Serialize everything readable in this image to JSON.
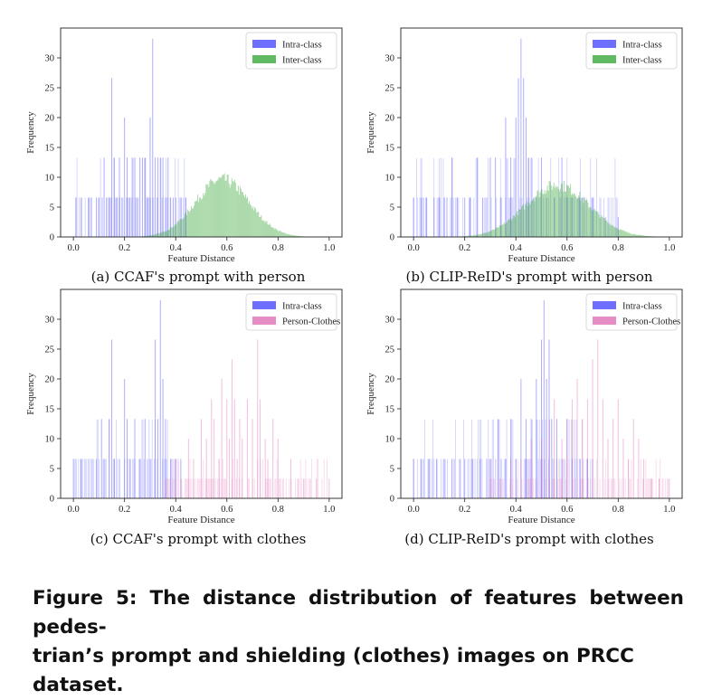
{
  "caption": {
    "lines": [
      "Figure 5: The distance distribution of features between pedes-",
      "trian’s prompt and shielding (clothes) images on PRCC",
      "dataset."
    ]
  },
  "colors": {
    "intra": "#4b4bff",
    "inter": "#3aa83a",
    "person_clothes": "#e070b8"
  },
  "chart_data": [
    {
      "type": "histogram",
      "subcaption": "(a) CCAF's prompt with person",
      "xlabel": "Feature Distance",
      "ylabel": "Frequency",
      "xlim": [
        -0.05,
        1.05
      ],
      "ylim": [
        0,
        35
      ],
      "xticks": [
        "0.0",
        "0.2",
        "0.4",
        "0.6",
        "0.8",
        "1.0"
      ],
      "yticks": [
        "0",
        "5",
        "10",
        "15",
        "20",
        "25",
        "30"
      ],
      "legend_position": "top-right",
      "series": [
        {
          "name": "Intra-class",
          "style": "spikes",
          "color_key": "intra",
          "x": [
            0.01,
            0.03,
            0.06,
            0.07,
            0.09,
            0.1,
            0.12,
            0.13,
            0.14,
            0.15,
            0.16,
            0.17,
            0.18,
            0.19,
            0.2,
            0.21,
            0.22,
            0.23,
            0.24,
            0.25,
            0.26,
            0.27,
            0.28,
            0.29,
            0.3,
            0.31,
            0.32,
            0.33,
            0.34,
            0.35,
            0.36,
            0.37,
            0.38,
            0.39,
            0.4,
            0.42,
            0.44
          ],
          "values": [
            6.6,
            6.6,
            6.6,
            6.6,
            6.6,
            6.6,
            13.3,
            6.6,
            6.6,
            26.6,
            13.3,
            6.6,
            13.3,
            6.6,
            20,
            13.3,
            6.6,
            13.3,
            13.3,
            6.6,
            13.3,
            13.3,
            13.3,
            6.6,
            20,
            33.2,
            13.3,
            13.3,
            13.3,
            13.3,
            6.6,
            13.3,
            6.6,
            6.6,
            6.6,
            6.6,
            6.6
          ]
        },
        {
          "name": "Inter-class",
          "style": "gaussian",
          "color_key": "inter",
          "mean": 0.58,
          "std": 0.105,
          "peak": 9.6,
          "range": [
            0.2,
            0.96
          ]
        }
      ]
    },
    {
      "type": "histogram",
      "subcaption": "(b) CLIP-ReID's prompt with person",
      "xlabel": "Feature Distance",
      "ylabel": "Frequency",
      "xlim": [
        -0.05,
        1.05
      ],
      "ylim": [
        0,
        35
      ],
      "xticks": [
        "0.0",
        "0.2",
        "0.4",
        "0.6",
        "0.8",
        "1.0"
      ],
      "yticks": [
        "0",
        "5",
        "10",
        "15",
        "20",
        "25",
        "30"
      ],
      "legend_position": "top-right",
      "series": [
        {
          "name": "Intra-class",
          "style": "spikes",
          "color_key": "intra",
          "x": [
            0.0,
            0.03,
            0.05,
            0.08,
            0.1,
            0.12,
            0.15,
            0.17,
            0.2,
            0.22,
            0.25,
            0.27,
            0.3,
            0.32,
            0.34,
            0.36,
            0.38,
            0.4,
            0.41,
            0.42,
            0.43,
            0.44,
            0.45,
            0.46,
            0.48,
            0.5,
            0.52,
            0.55,
            0.58,
            0.6,
            0.62,
            0.65,
            0.7,
            0.75,
            0.8
          ],
          "values": [
            6.6,
            6.6,
            6.6,
            6.6,
            6.6,
            6.6,
            13.3,
            6.6,
            6.6,
            6.6,
            13.3,
            6.6,
            13.3,
            13.3,
            6.6,
            20,
            13.3,
            20,
            26.6,
            33.2,
            26.6,
            20,
            13.3,
            13.3,
            6.6,
            13.3,
            6.6,
            6.6,
            13.3,
            6.6,
            6.6,
            6.6,
            6.6,
            3.3,
            3.3
          ]
        },
        {
          "name": "Inter-class",
          "style": "gaussian",
          "color_key": "inter",
          "mean": 0.56,
          "std": 0.125,
          "peak": 8.7,
          "range": [
            0.14,
            1.0
          ]
        }
      ]
    },
    {
      "type": "histogram",
      "subcaption": "(c) CCAF's prompt with clothes",
      "xlabel": "Feature Distance",
      "ylabel": "Frequency",
      "xlim": [
        -0.05,
        1.05
      ],
      "ylim": [
        0,
        35
      ],
      "xticks": [
        "0.0",
        "0.2",
        "0.4",
        "0.6",
        "0.8",
        "1.0"
      ],
      "yticks": [
        "0",
        "5",
        "10",
        "15",
        "20",
        "25",
        "30"
      ],
      "legend_position": "top-right",
      "series": [
        {
          "name": "Intra-class",
          "style": "spikes",
          "color_key": "intra",
          "x": [
            0.0,
            0.03,
            0.06,
            0.09,
            0.11,
            0.12,
            0.14,
            0.15,
            0.16,
            0.18,
            0.2,
            0.21,
            0.22,
            0.24,
            0.26,
            0.28,
            0.3,
            0.32,
            0.33,
            0.34,
            0.35,
            0.36,
            0.38,
            0.4,
            0.42
          ],
          "values": [
            6.6,
            6.6,
            6.6,
            6.6,
            13.3,
            6.6,
            13.3,
            26.6,
            6.6,
            6.6,
            20,
            13.3,
            6.6,
            13.3,
            6.6,
            13.3,
            6.6,
            26.6,
            13.3,
            33.2,
            20,
            13.3,
            6.6,
            6.6,
            6.6
          ]
        },
        {
          "name": "Person-Clothes",
          "style": "spikes",
          "color_key": "person_clothes",
          "x": [
            0.36,
            0.4,
            0.42,
            0.45,
            0.47,
            0.5,
            0.52,
            0.54,
            0.55,
            0.57,
            0.58,
            0.6,
            0.61,
            0.62,
            0.63,
            0.64,
            0.65,
            0.66,
            0.68,
            0.7,
            0.72,
            0.73,
            0.75,
            0.76,
            0.78,
            0.8,
            0.82,
            0.85,
            0.88,
            0.9,
            0.95,
            1.0
          ],
          "values": [
            3.3,
            6.6,
            3.3,
            10,
            6.6,
            13.3,
            10,
            16.6,
            13.3,
            6.6,
            20,
            16.6,
            10,
            23.3,
            16.6,
            6.6,
            13.3,
            10,
            16.6,
            13.3,
            26.6,
            16.6,
            10,
            6.6,
            13.3,
            10,
            3.3,
            6.6,
            3.3,
            3.3,
            3.3,
            3.3
          ]
        }
      ]
    },
    {
      "type": "histogram",
      "subcaption": "(d) CLIP-ReID's prompt with clothes",
      "xlabel": "Feature Distance",
      "ylabel": "Frequency",
      "xlim": [
        -0.05,
        1.05
      ],
      "ylim": [
        0,
        35
      ],
      "xticks": [
        "0.0",
        "0.2",
        "0.4",
        "0.6",
        "0.8",
        "1.0"
      ],
      "yticks": [
        "0",
        "5",
        "10",
        "15",
        "20",
        "25",
        "30"
      ],
      "legend_position": "top-right",
      "series": [
        {
          "name": "Intra-class",
          "style": "spikes",
          "color_key": "intra",
          "x": [
            0.0,
            0.03,
            0.06,
            0.09,
            0.12,
            0.15,
            0.18,
            0.2,
            0.23,
            0.26,
            0.3,
            0.33,
            0.36,
            0.38,
            0.4,
            0.42,
            0.44,
            0.46,
            0.48,
            0.5,
            0.51,
            0.52,
            0.53,
            0.54,
            0.56,
            0.58,
            0.6,
            0.62,
            0.65,
            0.68,
            0.7
          ],
          "values": [
            6.6,
            6.6,
            6.6,
            6.6,
            6.6,
            6.6,
            6.6,
            6.6,
            6.6,
            6.6,
            6.6,
            13.3,
            6.6,
            13.3,
            6.6,
            20,
            13.3,
            13.3,
            20,
            26.6,
            33.2,
            20,
            26.6,
            13.3,
            13.3,
            6.6,
            13.3,
            6.6,
            6.6,
            6.6,
            6.6
          ]
        },
        {
          "name": "Person-Clothes",
          "style": "spikes",
          "color_key": "person_clothes",
          "x": [
            0.3,
            0.34,
            0.38,
            0.42,
            0.46,
            0.5,
            0.53,
            0.55,
            0.58,
            0.6,
            0.62,
            0.64,
            0.66,
            0.68,
            0.7,
            0.72,
            0.74,
            0.76,
            0.78,
            0.8,
            0.82,
            0.84,
            0.86,
            0.88,
            0.9,
            0.93,
            0.96,
            1.0
          ],
          "values": [
            3.3,
            3.3,
            6.6,
            6.6,
            10,
            10,
            13.3,
            16.6,
            10,
            13.3,
            16.6,
            20,
            13.3,
            16.6,
            23.3,
            26.6,
            16.6,
            10,
            13.3,
            16.6,
            10,
            6.6,
            13.3,
            10,
            6.6,
            3.3,
            3.3,
            3.3
          ]
        }
      ]
    }
  ]
}
